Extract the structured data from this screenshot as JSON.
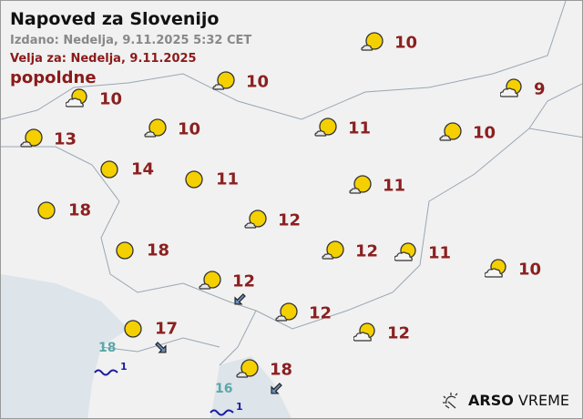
{
  "header": {
    "title": "Napoved za Slovenijo",
    "issued": "Izdano: Nedelja, 9.11.2025 5:32 CET",
    "valid": "Velja za: Nedelja, 9.11.2025",
    "period": "popoldne"
  },
  "colors": {
    "temp": "#8b2020",
    "sea_temp": "#5aa8a8",
    "wave": "#1a1aa0",
    "sun": "#f5d000",
    "land": "#f1f1f1",
    "sea": "#dde4ea"
  },
  "stations": [
    {
      "icon": "partly-cloudy",
      "temp": "10"
    },
    {
      "icon": "partly-cloudy",
      "temp": "10"
    },
    {
      "icon": "mostly-cloudy",
      "temp": "10"
    },
    {
      "icon": "mostly-cloudy",
      "temp": "9"
    },
    {
      "icon": "partly-cloudy",
      "temp": "13"
    },
    {
      "icon": "partly-cloudy",
      "temp": "10"
    },
    {
      "icon": "partly-cloudy",
      "temp": "11"
    },
    {
      "icon": "partly-cloudy",
      "temp": "10"
    },
    {
      "icon": "clear",
      "temp": "14"
    },
    {
      "icon": "clear",
      "temp": "11"
    },
    {
      "icon": "partly-cloudy",
      "temp": "11"
    },
    {
      "icon": "clear",
      "temp": "18"
    },
    {
      "icon": "partly-cloudy",
      "temp": "12"
    },
    {
      "icon": "clear",
      "temp": "18"
    },
    {
      "icon": "partly-cloudy",
      "temp": "12"
    },
    {
      "icon": "mostly-cloudy",
      "temp": "11"
    },
    {
      "icon": "mostly-cloudy",
      "temp": "10"
    },
    {
      "icon": "partly-cloudy",
      "temp": "12"
    },
    {
      "icon": "partly-cloudy",
      "temp": "12"
    },
    {
      "icon": "mostly-cloudy",
      "temp": "12"
    },
    {
      "icon": "clear",
      "temp": "17"
    },
    {
      "icon": "partly-cloudy",
      "temp": "18"
    }
  ],
  "sea": [
    {
      "temp": "18",
      "wave": "1"
    },
    {
      "temp": "16",
      "wave": "1"
    }
  ],
  "wind": [
    {
      "direction": "southwest"
    },
    {
      "direction": "southeast"
    },
    {
      "direction": "southwest"
    }
  ],
  "logo": {
    "brand": "ARSO",
    "product": "VREME"
  }
}
